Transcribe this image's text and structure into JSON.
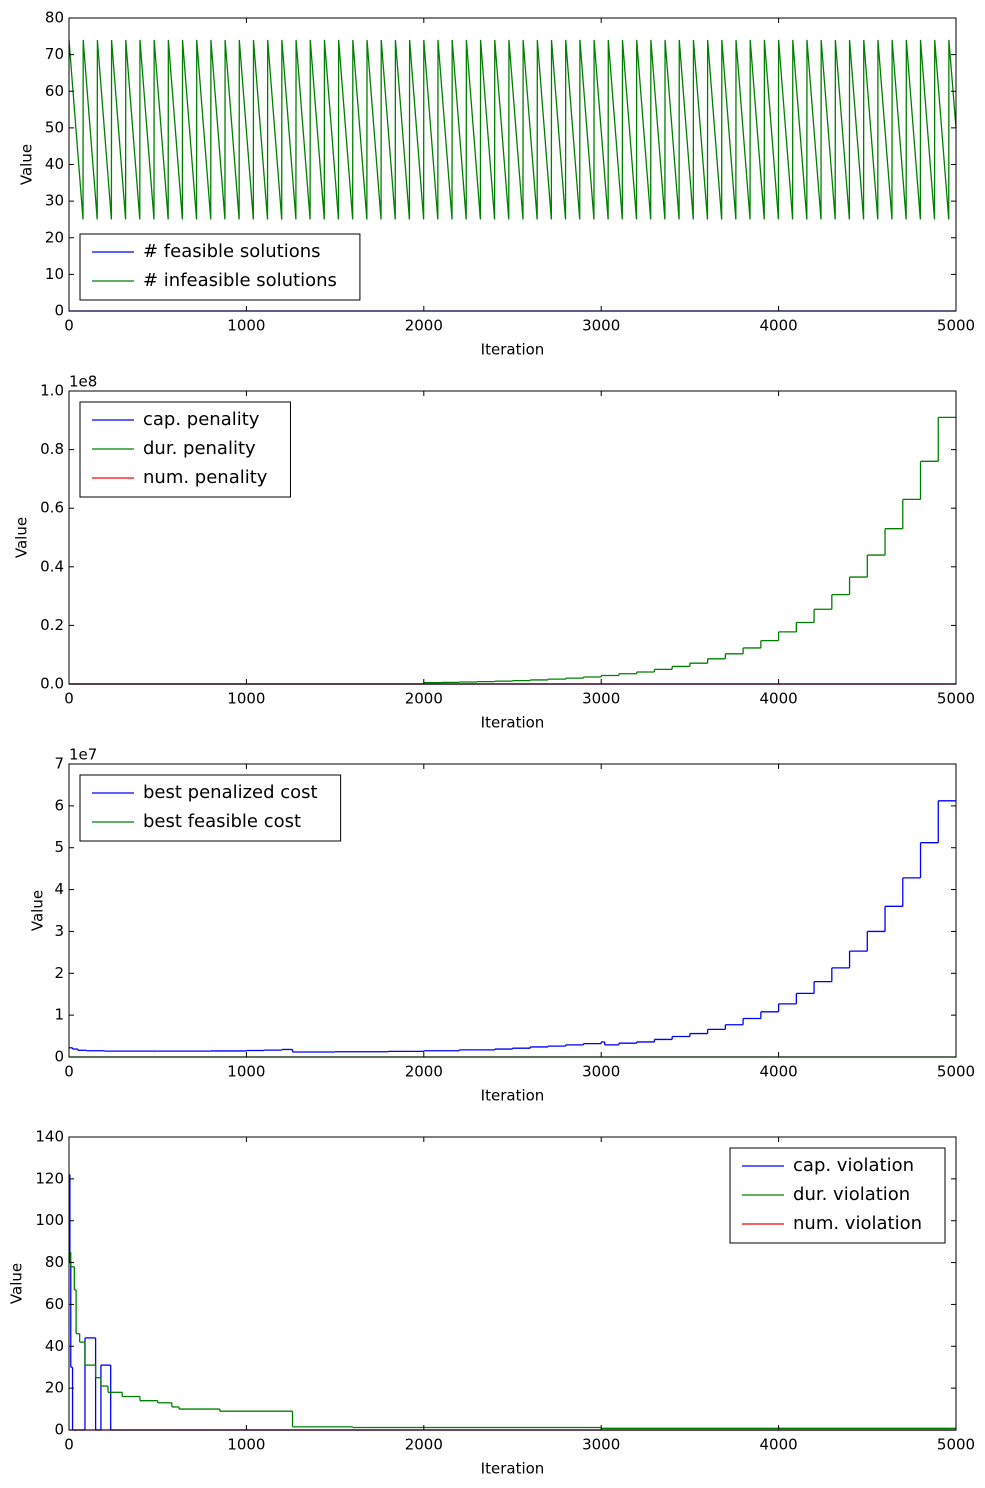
{
  "chart_data": [
    {
      "type": "line",
      "xlabel": "Iteration",
      "ylabel": "Value",
      "xlim": [
        0,
        5000
      ],
      "ylim": [
        0,
        80
      ],
      "xticks": [
        0,
        1000,
        2000,
        3000,
        4000,
        5000
      ],
      "yticks": [
        0,
        10,
        20,
        30,
        40,
        50,
        60,
        70,
        80
      ],
      "legend": "lower left",
      "series": [
        {
          "name": "# feasible solutions",
          "color": "#0000ff",
          "step": false,
          "x": [
            0,
            5000
          ],
          "values": [
            0,
            0
          ]
        },
        {
          "name": "# infeasible solutions",
          "color": "#008000",
          "step": false,
          "x": [
            0,
            79,
            80,
            159,
            160,
            239,
            240,
            319,
            320,
            399,
            400,
            479,
            480,
            559,
            560,
            639,
            640,
            719,
            720,
            799,
            800,
            879,
            880,
            959,
            960,
            1039,
            1040,
            1119,
            1120,
            1199,
            1200,
            1279,
            1280,
            1359,
            1360,
            1439,
            1440,
            1519,
            1520,
            1599,
            1600,
            1679,
            1680,
            1759,
            1760,
            1839,
            1840,
            1919,
            1920,
            1999,
            2000,
            2079,
            2080,
            2159,
            2160,
            2239,
            2240,
            2319,
            2320,
            2399,
            2400,
            2479,
            2480,
            2559,
            2560,
            2639,
            2640,
            2719,
            2720,
            2799,
            2800,
            2879,
            2880,
            2959,
            2960,
            3039,
            3040,
            3119,
            3120,
            3199,
            3200,
            3279,
            3280,
            3359,
            3360,
            3439,
            3440,
            3519,
            3520,
            3599,
            3600,
            3679,
            3680,
            3759,
            3760,
            3839,
            3840,
            3919,
            3920,
            3999,
            4000,
            4079,
            4080,
            4159,
            4160,
            4239,
            4240,
            4319,
            4320,
            4399,
            4400,
            4479,
            4480,
            4559,
            4560,
            4639,
            4640,
            4719,
            4720,
            4799,
            4800,
            4879,
            4880,
            4959,
            4960,
            5000
          ],
          "values": [
            74,
            25,
            74,
            25,
            74,
            25,
            74,
            25,
            74,
            25,
            74,
            25,
            74,
            25,
            74,
            25,
            74,
            25,
            74,
            25,
            74,
            25,
            74,
            25,
            74,
            25,
            74,
            25,
            74,
            25,
            74,
            25,
            74,
            25,
            74,
            25,
            74,
            25,
            74,
            25,
            74,
            25,
            74,
            25,
            74,
            25,
            74,
            25,
            74,
            25,
            74,
            25,
            74,
            25,
            74,
            25,
            74,
            25,
            74,
            25,
            74,
            25,
            74,
            25,
            74,
            25,
            74,
            25,
            74,
            25,
            74,
            25,
            74,
            25,
            74,
            25,
            74,
            25,
            74,
            25,
            74,
            25,
            74,
            25,
            74,
            25,
            74,
            25,
            74,
            25,
            74,
            25,
            74,
            25,
            74,
            25,
            74,
            25,
            74,
            25,
            74,
            25,
            74,
            25,
            74,
            25,
            74,
            25,
            74,
            25,
            74,
            25,
            74,
            25,
            74,
            25,
            74,
            25,
            74,
            25,
            74,
            25,
            74,
            25,
            74,
            50
          ]
        }
      ]
    },
    {
      "type": "line",
      "xlabel": "Iteration",
      "ylabel": "Value",
      "offset_label": "1e8",
      "xlim": [
        0,
        5000
      ],
      "ylim": [
        0,
        100000000
      ],
      "xticks": [
        0,
        1000,
        2000,
        3000,
        4000,
        5000
      ],
      "yticks": [
        {
          "value": 0,
          "label": "0.0"
        },
        {
          "value": 20000000,
          "label": "0.2"
        },
        {
          "value": 40000000,
          "label": "0.4"
        },
        {
          "value": 60000000,
          "label": "0.6"
        },
        {
          "value": 80000000,
          "label": "0.8"
        },
        {
          "value": 100000000,
          "label": "1.0"
        }
      ],
      "legend": "upper left",
      "series": [
        {
          "name": "cap. penality",
          "color": "#0000ff",
          "step": true,
          "x": [
            0,
            5000
          ],
          "values": [
            0,
            0
          ]
        },
        {
          "name": "dur. penality",
          "color": "#008000",
          "step": true,
          "x": [
            0,
            2000,
            2100,
            2200,
            2300,
            2400,
            2500,
            2600,
            2700,
            2800,
            2900,
            3000,
            3100,
            3200,
            3300,
            3400,
            3500,
            3600,
            3700,
            3800,
            3900,
            4000,
            4100,
            4200,
            4300,
            4400,
            4500,
            4600,
            4700,
            4800,
            4900,
            5000
          ],
          "values": [
            0,
            470000,
            560000,
            670000,
            800000,
            970000,
            1160000,
            1390000,
            1670000,
            2000000,
            2400000,
            2900000,
            3500000,
            4100000,
            5000000,
            6000000,
            7100000,
            8600000,
            10300000,
            12300000,
            14800000,
            17800000,
            21000000,
            25500000,
            30500000,
            36500000,
            44000000,
            53000000,
            63000000,
            76000000,
            91000000,
            91000000
          ]
        },
        {
          "name": "num. penality",
          "color": "#ff0000",
          "step": true,
          "x": [
            0,
            5000
          ],
          "values": [
            0,
            0
          ]
        }
      ]
    },
    {
      "type": "line",
      "xlabel": "Iteration",
      "ylabel": "Value",
      "offset_label": "1e7",
      "xlim": [
        0,
        5000
      ],
      "ylim": [
        0,
        70000000
      ],
      "xticks": [
        0,
        1000,
        2000,
        3000,
        4000,
        5000
      ],
      "yticks": [
        {
          "value": 0,
          "label": "0"
        },
        {
          "value": 10000000,
          "label": "1"
        },
        {
          "value": 20000000,
          "label": "2"
        },
        {
          "value": 30000000,
          "label": "3"
        },
        {
          "value": 40000000,
          "label": "4"
        },
        {
          "value": 50000000,
          "label": "5"
        },
        {
          "value": 60000000,
          "label": "6"
        },
        {
          "value": 70000000,
          "label": "7"
        }
      ],
      "legend": "upper left",
      "series": [
        {
          "name": "best penalized cost",
          "color": "#0000ff",
          "step": true,
          "x": [
            0,
            20,
            50,
            100,
            200,
            500,
            800,
            1000,
            1100,
            1200,
            1260,
            1500,
            1800,
            2000,
            2200,
            2400,
            2500,
            2600,
            2700,
            2800,
            2900,
            3000,
            3020,
            3100,
            3200,
            3300,
            3400,
            3500,
            3600,
            3700,
            3800,
            3900,
            4000,
            4100,
            4200,
            4300,
            4400,
            4500,
            4600,
            4700,
            4800,
            4900,
            5000
          ],
          "values": [
            2200000,
            1900000,
            1600000,
            1500000,
            1400000,
            1400000,
            1450000,
            1550000,
            1650000,
            1800000,
            1200000,
            1250000,
            1350000,
            1500000,
            1700000,
            1900000,
            2100000,
            2400000,
            2600000,
            2900000,
            3200000,
            3600000,
            2900000,
            3300000,
            3600000,
            4200000,
            4900000,
            5600000,
            6600000,
            7700000,
            9200000,
            10800000,
            12700000,
            15200000,
            18000000,
            21300000,
            25300000,
            30000000,
            36000000,
            42800000,
            51200000,
            61200000,
            61200000
          ]
        },
        {
          "name": "best feasible cost",
          "color": "#008000",
          "step": true,
          "x": [
            0,
            5000
          ],
          "values": [
            0,
            0
          ]
        }
      ]
    },
    {
      "type": "line",
      "xlabel": "Iteration",
      "ylabel": "Value",
      "xlim": [
        0,
        5000
      ],
      "ylim": [
        0,
        140
      ],
      "xticks": [
        0,
        1000,
        2000,
        3000,
        4000,
        5000
      ],
      "yticks": [
        0,
        20,
        40,
        60,
        80,
        100,
        120,
        140
      ],
      "legend": "upper right",
      "series": [
        {
          "name": "cap. violation",
          "color": "#0000ff",
          "step": true,
          "x": [
            0,
            5,
            10,
            20,
            90,
            150,
            180,
            235,
            5000
          ],
          "values": [
            122,
            80,
            30,
            0,
            44,
            0,
            31,
            0,
            0
          ]
        },
        {
          "name": "dur. violation",
          "color": "#008000",
          "step": true,
          "x": [
            0,
            10,
            30,
            40,
            60,
            90,
            150,
            180,
            220,
            300,
            400,
            500,
            580,
            620,
            850,
            1260,
            1600,
            3000,
            5000
          ],
          "values": [
            85,
            78,
            67,
            46,
            42,
            31,
            25,
            21,
            18,
            16,
            14,
            13,
            11,
            10,
            9,
            1.5,
            1.2,
            0.8,
            0.8
          ]
        },
        {
          "name": "num. violation",
          "color": "#ff0000",
          "step": true,
          "x": [
            0,
            5000
          ],
          "values": [
            0,
            0
          ]
        }
      ]
    }
  ]
}
